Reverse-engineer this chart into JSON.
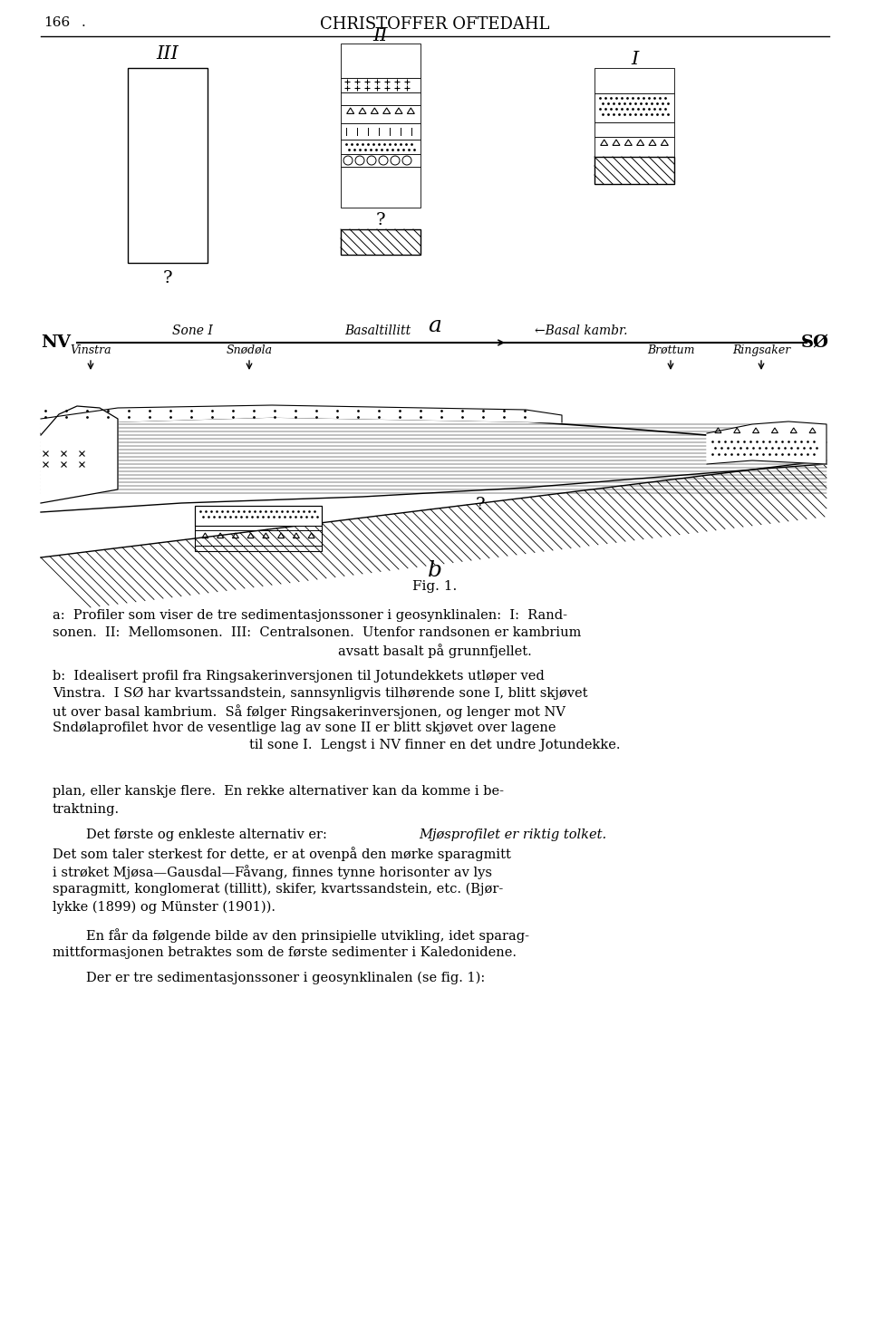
{
  "page_number": "166",
  "header": "CHRISTOFFER OFTEDAHL",
  "fig_label": "Fig. 1.",
  "background_color": "#ffffff"
}
